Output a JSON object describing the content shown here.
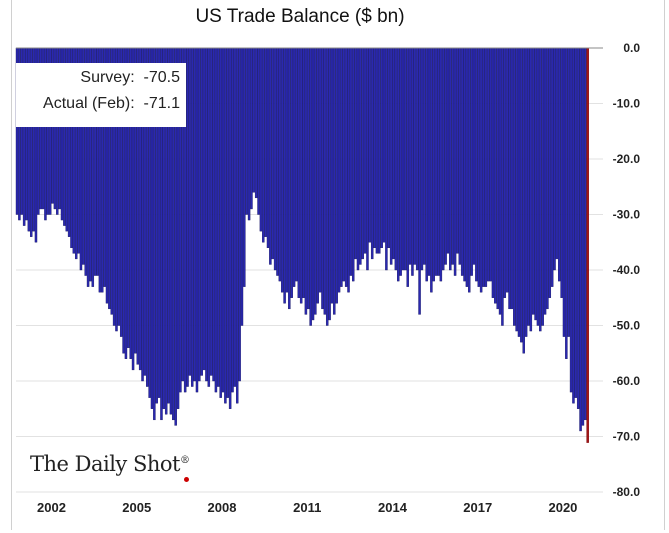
{
  "chart_data": {
    "type": "bar",
    "title": "US Trade Balance ($ bn)",
    "xlabel": "",
    "ylabel": "",
    "frequency": "monthly",
    "start": "2001-01",
    "end": "2021-02",
    "ylim": [
      -80,
      0
    ],
    "yticks": [
      "0.0",
      "-10.0",
      "-20.0",
      "-30.0",
      "-40.0",
      "-50.0",
      "-60.0",
      "-70.0",
      "-80.0"
    ],
    "xticks": [
      "2002",
      "2005",
      "2008",
      "2011",
      "2014",
      "2017",
      "2020"
    ],
    "grid": true,
    "y_axis_side": "right",
    "colors": {
      "bars": "#2a28b0",
      "latest_bar": "#a01418"
    },
    "annotation": {
      "survey_label": "Survey:",
      "survey_value": "-70.5",
      "actual_label": "Actual (Feb):",
      "actual_value": "-71.1"
    },
    "values": [
      -30,
      -31,
      -30,
      -32,
      -31,
      -33,
      -34,
      -33,
      -35,
      -30,
      -29,
      -29,
      -31,
      -30,
      -30,
      -28,
      -29,
      -30,
      -29,
      -31,
      -32,
      -33,
      -34,
      -36,
      -37,
      -38,
      -37,
      -40,
      -39,
      -41,
      -43,
      -42,
      -43,
      -41,
      -41,
      -44,
      -44,
      -43,
      -46,
      -47,
      -48,
      -50,
      -51,
      -50,
      -52,
      -55,
      -56,
      -54,
      -56,
      -58,
      -55,
      -57,
      -58,
      -60,
      -59,
      -61,
      -63,
      -65,
      -67,
      -64,
      -63,
      -67,
      -65,
      -66,
      -64,
      -66,
      -67,
      -68,
      -65,
      -62,
      -60,
      -62,
      -61,
      -59,
      -61,
      -60,
      -62,
      -60,
      -59,
      -58,
      -60,
      -61,
      -59,
      -60,
      -62,
      -61,
      -63,
      -62,
      -64,
      -63,
      -65,
      -62,
      -61,
      -64,
      -60,
      -50,
      -43,
      -30,
      -31,
      -29,
      -26,
      -27,
      -30,
      -33,
      -35,
      -34,
      -36,
      -39,
      -38,
      -40,
      -41,
      -42,
      -44,
      -46,
      -44,
      -47,
      -45,
      -43,
      -42,
      -45,
      -46,
      -45,
      -48,
      -47,
      -50,
      -49,
      -48,
      -46,
      -44,
      -47,
      -48,
      -50,
      -49,
      -46,
      -48,
      -46,
      -44,
      -43,
      -42,
      -43,
      -44,
      -41,
      -42,
      -38,
      -40,
      -39,
      -38,
      -37,
      -40,
      -35,
      -38,
      -36,
      -37,
      -37,
      -36,
      -35,
      -40,
      -36,
      -39,
      -38,
      -40,
      -42,
      -41,
      -40,
      -40,
      -43,
      -39,
      -41,
      -39,
      -40,
      -48,
      -40,
      -39,
      -42,
      -41,
      -44,
      -42,
      -41,
      -41,
      -42,
      -40,
      -39,
      -37,
      -40,
      -39,
      -41,
      -37,
      -39,
      -41,
      -42,
      -43,
      -44,
      -41,
      -39,
      -42,
      -43,
      -44,
      -43,
      -43,
      -42,
      -42,
      -45,
      -46,
      -47,
      -48,
      -50,
      -45,
      -44,
      -47,
      -47,
      -50,
      -51,
      -52,
      -53,
      -55,
      -52,
      -50,
      -51,
      -48,
      -49,
      -50,
      -51,
      -50,
      -48,
      -47,
      -45,
      -43,
      -40,
      -38,
      -42,
      -45,
      -52,
      -56,
      -52,
      -62,
      -64,
      -63,
      -65,
      -69,
      -68,
      -67,
      -71.1
    ]
  },
  "branding": {
    "logo_text": "The Daily Shot",
    "logo_mark": "®"
  }
}
